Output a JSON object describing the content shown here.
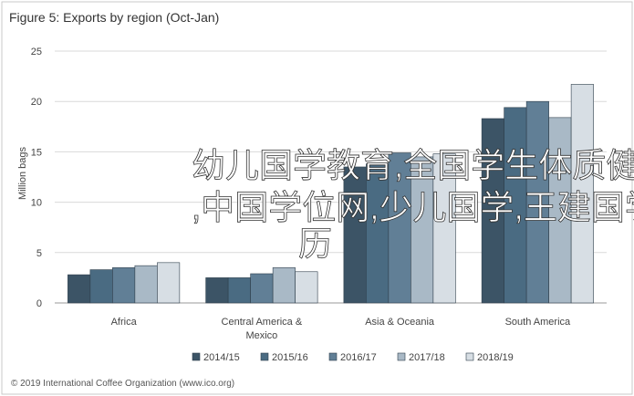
{
  "chart_data": {
    "type": "bar",
    "title": "Figure 5: Exports by region (Oct-Jan)",
    "xlabel": "",
    "ylabel": "Million bags",
    "ylim": [
      0,
      25
    ],
    "yticks": [
      0,
      5,
      10,
      15,
      20,
      25
    ],
    "grid": true,
    "legend_position": "bottom",
    "categories": [
      "Africa",
      "Central America & Mexico",
      "Asia & Oceania",
      "South America"
    ],
    "category_lines": [
      [
        "Africa"
      ],
      [
        "Central America &",
        "Mexico"
      ],
      [
        "Asia & Oceania"
      ],
      [
        "South America"
      ]
    ],
    "series": [
      {
        "name": "2014/15",
        "color": "#3c5466",
        "values": [
          2.8,
          2.5,
          13.5,
          18.3
        ]
      },
      {
        "name": "2015/16",
        "color": "#4a6b82",
        "values": [
          3.3,
          2.5,
          13.8,
          19.4
        ]
      },
      {
        "name": "2016/17",
        "color": "#617f96",
        "values": [
          3.5,
          2.9,
          14.9,
          20.0
        ]
      },
      {
        "name": "2017/18",
        "color": "#a9b9c6",
        "values": [
          3.7,
          3.5,
          14.5,
          18.4
        ]
      },
      {
        "name": "2018/19",
        "color": "#d7dee4",
        "values": [
          4.0,
          3.1,
          14.8,
          21.7
        ]
      }
    ]
  },
  "footer": {
    "source": "© 2019 International Coffee Organization (www.ico.org)"
  },
  "watermark": {
    "line1": "幼儿国学教育,全国学生体质健康网",
    "line2": ",中国学位网,少儿国学,王建国学",
    "line3": "历"
  }
}
